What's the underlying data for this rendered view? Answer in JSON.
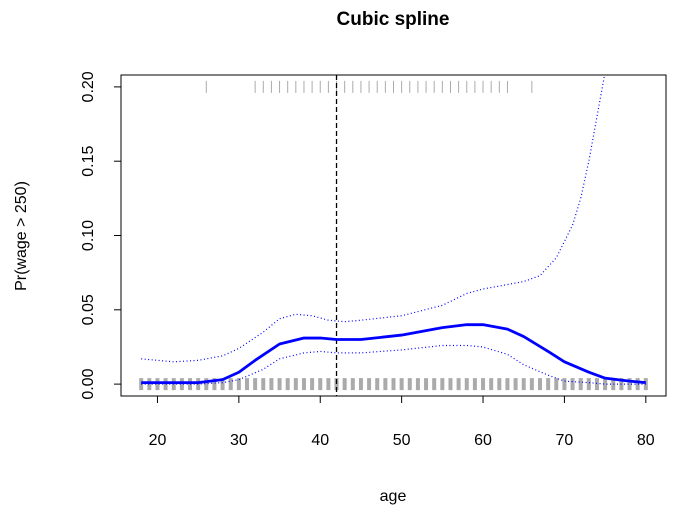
{
  "chart_data": {
    "type": "line",
    "title": "Cubic spline",
    "xlabel": "age",
    "ylabel": "Pr(wage > 250)",
    "xlim": [
      15.52,
      82.48
    ],
    "ylim": [
      -0.008,
      0.208
    ],
    "xticks": [
      20,
      30,
      40,
      50,
      60,
      70,
      80
    ],
    "yticks": [
      {
        "value": 0,
        "label": "0.00"
      },
      {
        "value": 0.05,
        "label": "0.05"
      },
      {
        "value": 0.1,
        "label": "0.10"
      },
      {
        "value": 0.15,
        "label": "0.15"
      },
      {
        "value": 0.2,
        "label": "0.20"
      }
    ],
    "vline": 42,
    "series": [
      {
        "color": "#0000ff",
        "style": "solid",
        "x": [
          18,
          25,
          28,
          30,
          32,
          35,
          38,
          40,
          42,
          45,
          50,
          55,
          58,
          60,
          63,
          65,
          68,
          70,
          73,
          75,
          78,
          80
        ],
        "values": [
          0.001,
          0.001,
          0.003,
          0.008,
          0.016,
          0.027,
          0.031,
          0.031,
          0.03,
          0.03,
          0.033,
          0.038,
          0.04,
          0.04,
          0.037,
          0.032,
          0.022,
          0.015,
          0.008,
          0.004,
          0.002,
          0.001
        ]
      },
      {
        "color": "#0000ff",
        "style": "dotted",
        "x": [
          18,
          20,
          22,
          25,
          28,
          30,
          33,
          35,
          37,
          39,
          41,
          43,
          45,
          50,
          55,
          58,
          60,
          63,
          65,
          67,
          69,
          71,
          72,
          73,
          74,
          75
        ],
        "values": [
          0.017,
          0.016,
          0.015,
          0.016,
          0.019,
          0.024,
          0.035,
          0.044,
          0.047,
          0.046,
          0.043,
          0.042,
          0.043,
          0.046,
          0.053,
          0.061,
          0.064,
          0.067,
          0.069,
          0.073,
          0.085,
          0.107,
          0.125,
          0.15,
          0.18,
          0.21
        ]
      },
      {
        "color": "#0000ff",
        "style": "dotted",
        "x": [
          18,
          25,
          28,
          30,
          33,
          35,
          38,
          40,
          42,
          45,
          50,
          55,
          58,
          60,
          63,
          65,
          68,
          70,
          73,
          75,
          80
        ],
        "values": [
          0.0,
          0.0,
          0.001,
          0.003,
          0.01,
          0.017,
          0.021,
          0.022,
          0.021,
          0.021,
          0.023,
          0.026,
          0.026,
          0.025,
          0.02,
          0.013,
          0.006,
          0.002,
          0.001,
          0.0,
          0.0
        ]
      }
    ],
    "rug_color": "#aaaaaa",
    "rug_top": {
      "y": 0.2,
      "x": [
        26,
        32,
        33,
        34,
        35,
        36,
        37,
        38,
        39,
        40,
        41,
        42,
        43,
        44,
        45,
        46,
        47,
        48,
        49,
        50,
        51,
        52,
        53,
        54,
        55,
        56,
        57,
        58,
        59,
        60,
        61,
        62,
        63,
        66
      ]
    },
    "rug_bottom": {
      "y": 0,
      "x": [
        18,
        19,
        20,
        21,
        22,
        23,
        24,
        25,
        26,
        27,
        28,
        29,
        30,
        31,
        32,
        33,
        34,
        35,
        36,
        37,
        38,
        39,
        40,
        41,
        42,
        43,
        44,
        45,
        46,
        47,
        48,
        49,
        50,
        51,
        52,
        53,
        54,
        55,
        56,
        57,
        58,
        59,
        60,
        61,
        62,
        63,
        64,
        65,
        66,
        67,
        68,
        69,
        70,
        71,
        72,
        73,
        74,
        75,
        76,
        77,
        78,
        79,
        80
      ]
    }
  }
}
